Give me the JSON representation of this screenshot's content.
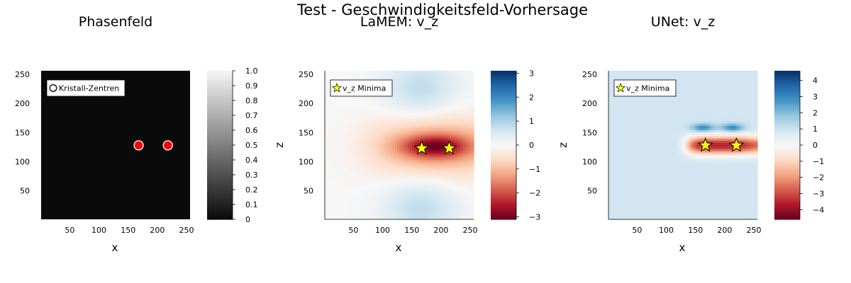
{
  "figure": {
    "suptitle": "Test - Geschwindigkeitsfeld-Vorhersage"
  },
  "chart_data": [
    {
      "type": "heatmap",
      "title": "Phasenfeld",
      "xlabel": "x",
      "ylabel": "",
      "xlim": [
        1,
        256
      ],
      "ylim": [
        1,
        256
      ],
      "xticks": [
        50,
        100,
        150,
        200,
        250
      ],
      "yticks": [
        50,
        100,
        150,
        200,
        250
      ],
      "field_value": 0,
      "colorscale": "grays",
      "clim": [
        0,
        1
      ],
      "colorbar_ticks": [
        0,
        0.1,
        0.2,
        0.3,
        0.4,
        0.5,
        0.6,
        0.7,
        0.8,
        0.9,
        1.0
      ],
      "colorbar_ticklabels": [
        "0",
        "0.1",
        "0.2",
        "0.3",
        "0.4",
        "0.5",
        "0.6",
        "0.7",
        "0.8",
        "0.9",
        "1.0"
      ],
      "markers": {
        "name": "Kristall-Zentren",
        "shape": "circle",
        "color": "#ff0000",
        "x": [
          168,
          218
        ],
        "y": [
          128,
          128
        ]
      },
      "legend_position": "top-left"
    },
    {
      "type": "heatmap",
      "title": "LaMEM: v_z",
      "xlabel": "x",
      "ylabel": "z",
      "xlim": [
        1,
        256
      ],
      "ylim": [
        1,
        256
      ],
      "xticks": [
        50,
        100,
        150,
        200,
        250
      ],
      "yticks": [
        50,
        100,
        150,
        200,
        250
      ],
      "colorscale": "RdBu",
      "clim": [
        -3.1,
        3.1
      ],
      "colorbar_ticks": [
        -3,
        -2,
        -1,
        0,
        1,
        2,
        3
      ],
      "colorbar_ticklabels": [
        "−3",
        "−2",
        "−1",
        "0",
        "1",
        "2",
        "3"
      ],
      "field_features": [
        {
          "kind": "negative-band",
          "x_range": [
            10,
            256
          ],
          "y_center": 126,
          "peak": -3.0
        },
        {
          "kind": "positive-lobe",
          "x_center": 165,
          "y_center": 225,
          "peak": 0.8
        },
        {
          "kind": "positive-lobe",
          "x_center": 165,
          "y_center": 20,
          "peak": 0.8
        }
      ],
      "markers": {
        "name": "v_z Minima",
        "shape": "star",
        "color": "#ffff00",
        "x": [
          167,
          214
        ],
        "y": [
          123,
          123
        ]
      },
      "legend_position": "top-left"
    },
    {
      "type": "heatmap",
      "title": "UNet: v_z",
      "xlabel": "x",
      "ylabel": "z",
      "xlim": [
        1,
        256
      ],
      "ylim": [
        1,
        256
      ],
      "xticks": [
        50,
        100,
        150,
        200,
        250
      ],
      "yticks": [
        50,
        100,
        150,
        200,
        250
      ],
      "colorscale": "RdBu",
      "clim": [
        -4.6,
        4.6
      ],
      "colorbar_ticks": [
        -4,
        -3,
        -2,
        -1,
        0,
        1,
        2,
        3,
        4
      ],
      "colorbar_ticklabels": [
        "−4",
        "−3",
        "−2",
        "−1",
        "0",
        "1",
        "2",
        "3",
        "4"
      ],
      "background_value": 0.9,
      "field_features": [
        {
          "kind": "negative-band",
          "x_range": [
            118,
            256
          ],
          "y_center": 128,
          "peak": -3.5
        },
        {
          "kind": "positive-lobe",
          "x_center": 163,
          "y_center": 158,
          "peak": 3.4
        },
        {
          "kind": "positive-lobe",
          "x_center": 213,
          "y_center": 158,
          "peak": 3.4
        }
      ],
      "markers": {
        "name": "v_z Minima",
        "shape": "star",
        "color": "#ffff00",
        "x": [
          167,
          220
        ],
        "y": [
          128,
          128
        ]
      },
      "legend_position": "top-left"
    }
  ]
}
